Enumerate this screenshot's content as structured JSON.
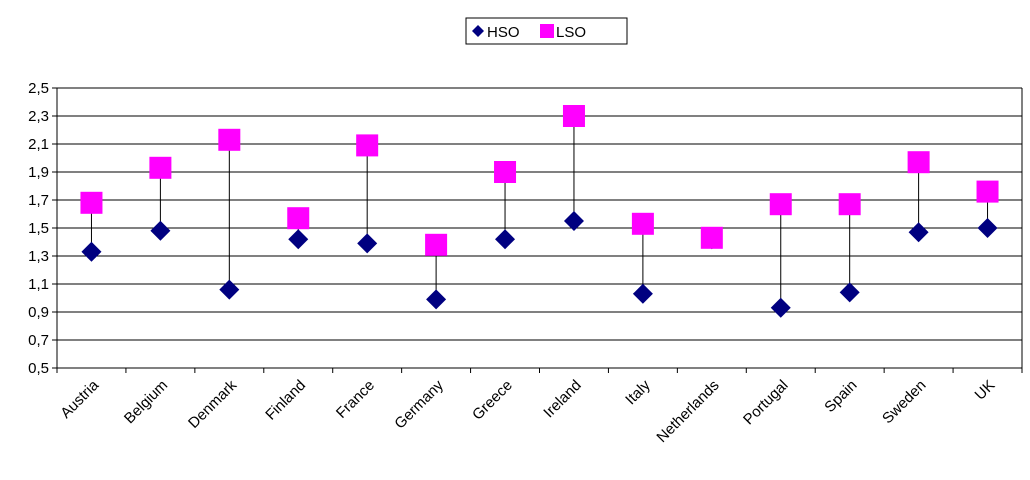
{
  "chart_data": {
    "type": "scatter",
    "categories": [
      "Austria",
      "Belgium",
      "Denmark",
      "Finland",
      "France",
      "Germany",
      "Greece",
      "Ireland",
      "Italy",
      "Netherlands",
      "Portugal",
      "Spain",
      "Sweden",
      "UK"
    ],
    "series": [
      {
        "name": "HSO",
        "marker": "diamond",
        "color": "#000080",
        "values": [
          1.33,
          1.48,
          1.06,
          1.42,
          1.39,
          0.99,
          1.42,
          1.55,
          1.03,
          1.42,
          0.93,
          1.04,
          1.47,
          1.5
        ]
      },
      {
        "name": "LSO",
        "marker": "square",
        "color": "#FF00FF",
        "values": [
          1.68,
          1.93,
          2.13,
          1.57,
          2.09,
          1.38,
          1.9,
          2.3,
          1.53,
          1.43,
          1.67,
          1.67,
          1.97,
          1.76
        ]
      }
    ],
    "y_ticks": [
      "0,5",
      "0,7",
      "0,9",
      "1,1",
      "1,3",
      "1,5",
      "1,7",
      "1,9",
      "2,1",
      "2,3",
      "2,5"
    ],
    "ylim": [
      0.5,
      2.5
    ],
    "grid": true,
    "legend": "top-center",
    "drop_lines": true
  }
}
